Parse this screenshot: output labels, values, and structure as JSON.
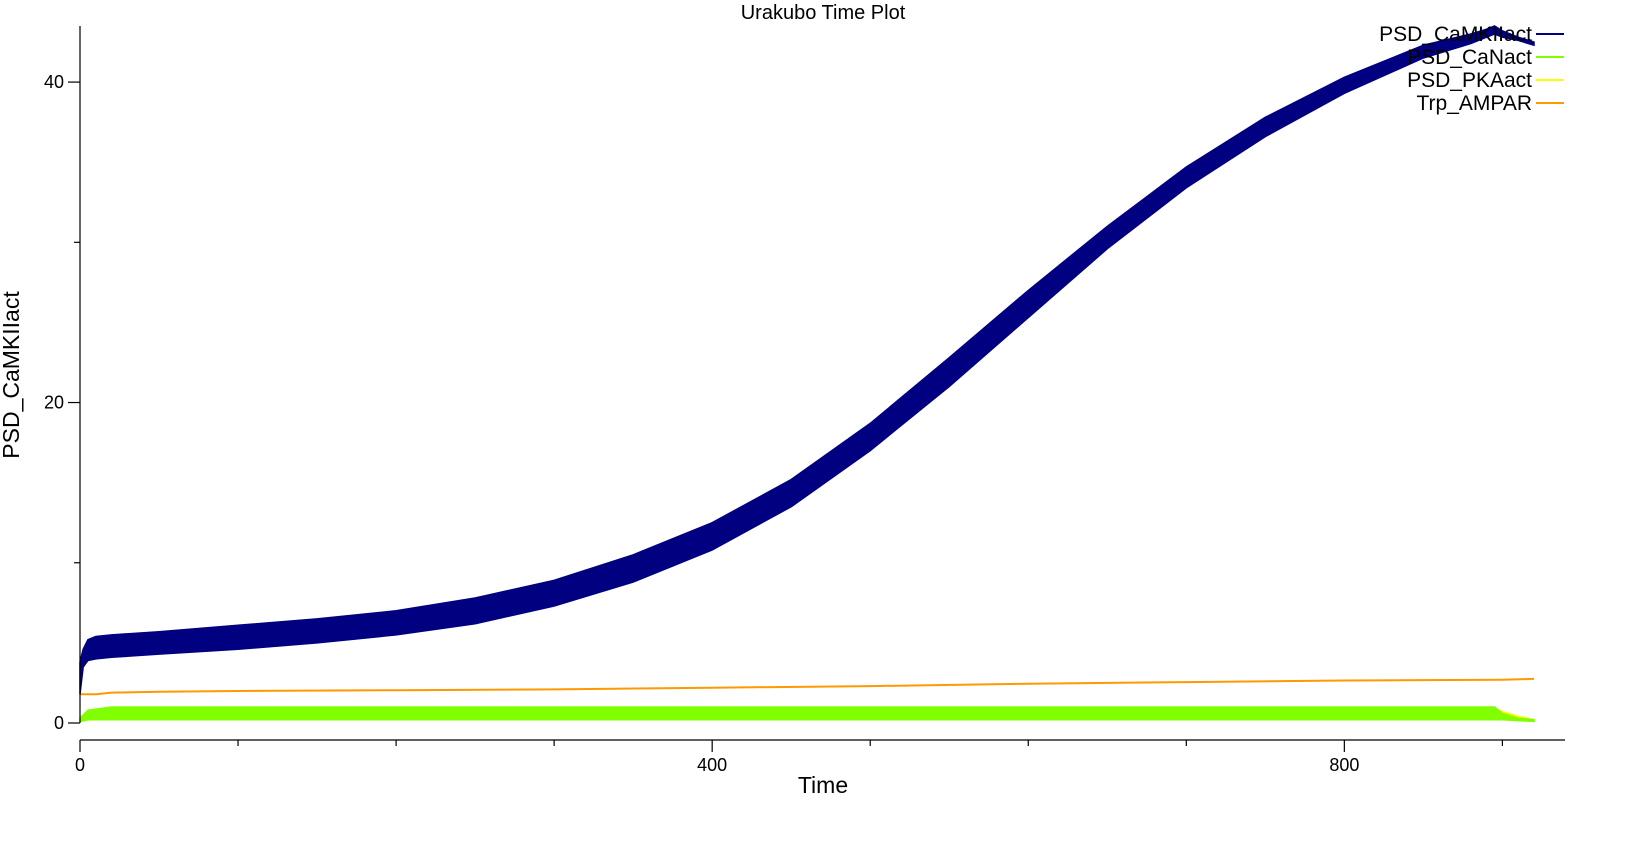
{
  "chart_data": {
    "type": "line",
    "title": "Urakubo Time Plot",
    "xlabel": "Time",
    "ylabel": "PSD_CaMKIIact",
    "xlim": [
      0,
      920
    ],
    "ylim": [
      0,
      43.5
    ],
    "xticks_major": [
      0,
      400,
      800
    ],
    "xticks_labels": [
      "0",
      "400",
      "800"
    ],
    "xticks_minor": [
      100,
      200,
      300,
      500,
      600,
      700,
      900
    ],
    "yticks_major": [
      0,
      20,
      40
    ],
    "yticks_labels": [
      "0",
      "20",
      "40"
    ],
    "yticks_minor": [
      10,
      30
    ],
    "grid": false,
    "legend_position": "top-right",
    "series": [
      {
        "name": "PSD_CaMKIIact",
        "color": "#000080",
        "band": true,
        "x": [
          0,
          2,
          5,
          10,
          20,
          50,
          100,
          150,
          200,
          250,
          300,
          350,
          400,
          450,
          500,
          550,
          600,
          650,
          700,
          750,
          800,
          850,
          880,
          890,
          895,
          900,
          910,
          920
        ],
        "upper": [
          3.8,
          4.6,
          5.2,
          5.4,
          5.5,
          5.7,
          6.1,
          6.5,
          7.0,
          7.8,
          8.9,
          10.5,
          12.5,
          15.2,
          18.7,
          22.8,
          27.0,
          31.0,
          34.7,
          37.8,
          40.3,
          42.3,
          43.0,
          43.3,
          43.5,
          43.2,
          42.8,
          42.5
        ],
        "lower": [
          1.8,
          3.5,
          3.9,
          4.0,
          4.1,
          4.3,
          4.6,
          5.0,
          5.5,
          6.2,
          7.3,
          8.8,
          10.8,
          13.5,
          17.0,
          21.0,
          25.3,
          29.6,
          33.4,
          36.6,
          39.3,
          41.5,
          42.4,
          42.8,
          43.0,
          42.8,
          42.6,
          42.3
        ]
      },
      {
        "name": "PSD_CaNact",
        "color": "#80ff00",
        "band": true,
        "x": [
          0,
          5,
          20,
          50,
          100,
          300,
          500,
          700,
          850,
          895,
          900,
          910,
          920
        ],
        "upper": [
          0.3,
          0.8,
          1.0,
          1.0,
          1.0,
          1.0,
          1.0,
          1.0,
          1.0,
          1.0,
          0.6,
          0.3,
          0.2
        ],
        "lower": [
          0.1,
          0.2,
          0.2,
          0.2,
          0.2,
          0.2,
          0.2,
          0.2,
          0.2,
          0.2,
          0.2,
          0.15,
          0.1
        ]
      },
      {
        "name": "PSD_PKAact",
        "color": "#ffff00",
        "band": false,
        "x": [
          0,
          10,
          20,
          30,
          50,
          100,
          300,
          500,
          700,
          895,
          900,
          910,
          920
        ],
        "y": [
          0.1,
          0.3,
          0.6,
          0.8,
          0.9,
          0.9,
          0.9,
          0.9,
          0.9,
          0.9,
          0.7,
          0.4,
          0.2
        ]
      },
      {
        "name": "Trp_AMPAR",
        "color": "#ff9900",
        "band": false,
        "x": [
          0,
          5,
          10,
          20,
          50,
          100,
          200,
          300,
          400,
          500,
          600,
          700,
          800,
          900,
          920
        ],
        "y": [
          1.8,
          1.8,
          1.8,
          1.9,
          1.95,
          2.0,
          2.05,
          2.1,
          2.2,
          2.3,
          2.45,
          2.55,
          2.65,
          2.7,
          2.75
        ]
      }
    ]
  }
}
